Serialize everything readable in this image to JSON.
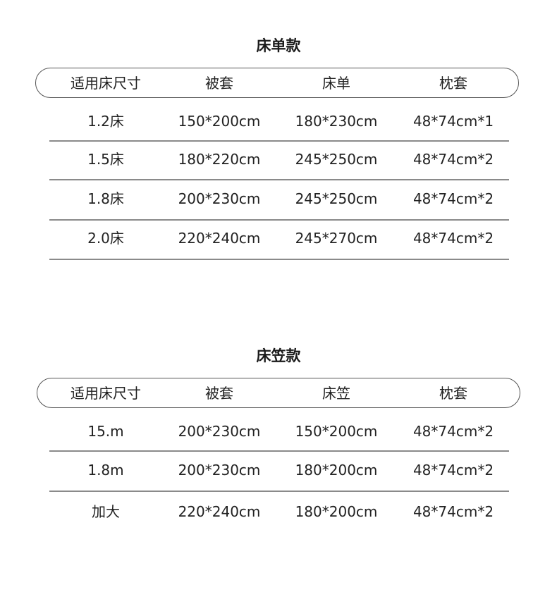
{
  "tables": [
    {
      "title": "床单款",
      "headers": [
        "适用床尺寸",
        "被套",
        "床单",
        "枕套"
      ],
      "rows": [
        [
          "1.2床",
          "150*200cm",
          "180*230cm",
          "48*74cm*1"
        ],
        [
          "1.5床",
          "180*220cm",
          "245*250cm",
          "48*74cm*2"
        ],
        [
          "1.8床",
          "200*230cm",
          "245*250cm",
          "48*74cm*2"
        ],
        [
          "2.0床",
          "220*240cm",
          "245*270cm",
          "48*74cm*2"
        ]
      ]
    },
    {
      "title": "床笠款",
      "headers": [
        "适用床尺寸",
        "被套",
        "床笠",
        "枕套"
      ],
      "rows": [
        [
          "15.m",
          "200*230cm",
          "150*200cm",
          "48*74cm*2"
        ],
        [
          "1.8m",
          "200*230cm",
          "180*200cm",
          "48*74cm*2"
        ],
        [
          "加大",
          "220*240cm",
          "180*200cm",
          "48*74cm*2"
        ]
      ]
    }
  ]
}
